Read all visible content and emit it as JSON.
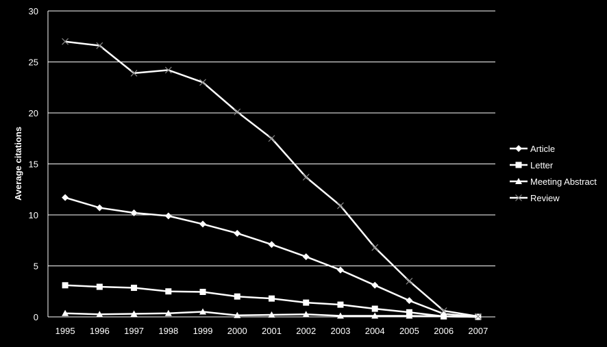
{
  "chart_data": {
    "type": "line",
    "ylabel": "Average citations",
    "xlabel": "",
    "ylim": [
      0,
      30
    ],
    "yticks": [
      0,
      5,
      10,
      15,
      20,
      25,
      30
    ],
    "x": [
      "1995",
      "1996",
      "1997",
      "1998",
      "1999",
      "2000",
      "2001",
      "2002",
      "2003",
      "2004",
      "2005",
      "2006",
      "2007"
    ],
    "grid": "horizontal",
    "legend_position": "right",
    "colors": {
      "background": "#000000",
      "lines": "#ffffff",
      "grid": "#ffffff"
    },
    "series": [
      {
        "name": "Article",
        "marker": "diamond",
        "values": [
          11.7,
          10.7,
          10.2,
          9.9,
          9.1,
          8.2,
          7.1,
          5.9,
          4.6,
          3.1,
          1.6,
          0.3,
          0.0
        ]
      },
      {
        "name": "Letter",
        "marker": "square",
        "values": [
          3.1,
          2.95,
          2.85,
          2.5,
          2.45,
          2.0,
          1.8,
          1.4,
          1.2,
          0.8,
          0.45,
          0.05,
          0.0
        ]
      },
      {
        "name": "Meeting Abstract",
        "marker": "triangle",
        "values": [
          0.35,
          0.25,
          0.3,
          0.35,
          0.5,
          0.15,
          0.2,
          0.25,
          0.1,
          0.1,
          0.1,
          0.05,
          0.0
        ]
      },
      {
        "name": "Review",
        "marker": "x",
        "values": [
          27.0,
          26.6,
          23.9,
          24.2,
          23.0,
          20.1,
          17.5,
          13.7,
          10.9,
          6.8,
          3.5,
          0.6,
          0.05
        ]
      }
    ]
  }
}
